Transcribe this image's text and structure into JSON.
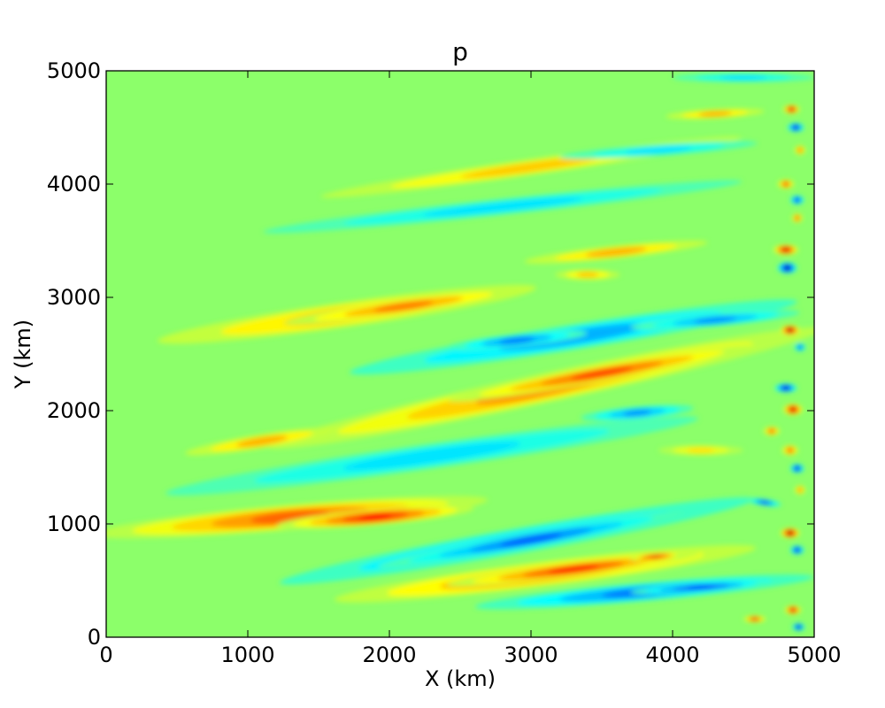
{
  "chart_data": {
    "type": "heatmap",
    "subtype": "filled-contour",
    "title": "p",
    "xlabel": "X (km)",
    "ylabel": "Y (km)",
    "xlim": [
      0,
      5000
    ],
    "ylim": [
      0,
      5000
    ],
    "xticks": [
      0,
      1000,
      2000,
      3000,
      4000,
      5000
    ],
    "yticks": [
      0,
      1000,
      2000,
      3000,
      4000,
      5000
    ],
    "colormap": "jet",
    "grid": false,
    "colorbar": false,
    "background_color": "#8cff6a",
    "features": [
      {
        "level": 0.55,
        "cx": 1300,
        "cy": 1060,
        "a": 1400,
        "b": 110,
        "angle": 5
      },
      {
        "level": 0.7,
        "cx": 1900,
        "cy": 1060,
        "a": 700,
        "b": 70,
        "angle": 5
      },
      {
        "level": 0.5,
        "cx": 3100,
        "cy": 560,
        "a": 1500,
        "b": 110,
        "angle": 7
      },
      {
        "level": 0.65,
        "cx": 3300,
        "cy": 600,
        "a": 900,
        "b": 65,
        "angle": 7
      },
      {
        "level": 0.8,
        "cx": 3880,
        "cy": 710,
        "a": 180,
        "b": 30,
        "angle": 5
      },
      {
        "level": 0.45,
        "cx": 3100,
        "cy": 2200,
        "a": 2000,
        "b": 130,
        "angle": 12
      },
      {
        "level": 0.6,
        "cx": 3500,
        "cy": 2330,
        "a": 1100,
        "b": 70,
        "angle": 10
      },
      {
        "level": 0.4,
        "cx": 1700,
        "cy": 2850,
        "a": 1350,
        "b": 110,
        "angle": 8
      },
      {
        "level": 0.5,
        "cx": 2100,
        "cy": 2920,
        "a": 850,
        "b": 65,
        "angle": 8
      },
      {
        "level": 0.4,
        "cx": 1100,
        "cy": 1730,
        "a": 550,
        "b": 60,
        "angle": 9
      },
      {
        "level": 0.35,
        "cx": 3000,
        "cy": 4150,
        "a": 1500,
        "b": 70,
        "angle": 8
      },
      {
        "level": 0.4,
        "cx": 3600,
        "cy": 3400,
        "a": 650,
        "b": 55,
        "angle": 6
      },
      {
        "level": 0.4,
        "cx": 4300,
        "cy": 4620,
        "a": 350,
        "b": 40,
        "angle": 3
      },
      {
        "level": 0.35,
        "cx": 3400,
        "cy": 3200,
        "a": 230,
        "b": 45,
        "angle": 0
      },
      {
        "level": 0.3,
        "cx": 4200,
        "cy": 1650,
        "a": 300,
        "b": 45,
        "angle": 0
      },
      {
        "level": -0.4,
        "cx": 2900,
        "cy": 850,
        "a": 1700,
        "b": 110,
        "angle": 10
      },
      {
        "level": -0.55,
        "cx": 3000,
        "cy": 860,
        "a": 1100,
        "b": 70,
        "angle": 10
      },
      {
        "level": -0.5,
        "cx": 3800,
        "cy": 400,
        "a": 1200,
        "b": 80,
        "angle": 5
      },
      {
        "level": -0.65,
        "cx": 4200,
        "cy": 440,
        "a": 500,
        "b": 40,
        "angle": 4
      },
      {
        "level": -0.4,
        "cx": 3300,
        "cy": 2650,
        "a": 1600,
        "b": 110,
        "angle": 9
      },
      {
        "level": -0.5,
        "cx": 2900,
        "cy": 2620,
        "a": 500,
        "b": 55,
        "angle": 6
      },
      {
        "level": -0.45,
        "cx": 4300,
        "cy": 2800,
        "a": 600,
        "b": 55,
        "angle": 5
      },
      {
        "level": -0.45,
        "cx": 3750,
        "cy": 1980,
        "a": 400,
        "b": 55,
        "angle": 5
      },
      {
        "level": -0.3,
        "cx": 2300,
        "cy": 1600,
        "a": 1900,
        "b": 110,
        "angle": 8
      },
      {
        "level": -0.3,
        "cx": 2800,
        "cy": 3800,
        "a": 1700,
        "b": 70,
        "angle": 6
      },
      {
        "level": -0.3,
        "cx": 3900,
        "cy": 4300,
        "a": 700,
        "b": 50,
        "angle": 4
      },
      {
        "level": -0.3,
        "cx": 4500,
        "cy": 4940,
        "a": 500,
        "b": 40,
        "angle": 0
      },
      {
        "level": 0.95,
        "cx": 4830,
        "cy": 920,
        "a": 70,
        "b": 45,
        "angle": 0
      },
      {
        "level": -0.95,
        "cx": 4810,
        "cy": 3260,
        "a": 70,
        "b": 50,
        "angle": 0
      },
      {
        "level": 0.95,
        "cx": 4830,
        "cy": 2710,
        "a": 70,
        "b": 45,
        "angle": 0
      },
      {
        "level": 0.85,
        "cx": 4850,
        "cy": 2010,
        "a": 70,
        "b": 50,
        "angle": 0
      },
      {
        "level": -0.85,
        "cx": 4800,
        "cy": 2200,
        "a": 80,
        "b": 40,
        "angle": 0
      },
      {
        "level": 0.85,
        "cx": 4800,
        "cy": 3420,
        "a": 90,
        "b": 45,
        "angle": 0
      },
      {
        "level": -0.8,
        "cx": 4880,
        "cy": 1490,
        "a": 50,
        "b": 40,
        "angle": 0
      },
      {
        "level": 0.8,
        "cx": 4840,
        "cy": 4660,
        "a": 60,
        "b": 40,
        "angle": 0
      },
      {
        "level": -0.8,
        "cx": 4870,
        "cy": 4500,
        "a": 60,
        "b": 40,
        "angle": 0
      },
      {
        "level": 0.8,
        "cx": 4850,
        "cy": 240,
        "a": 60,
        "b": 40,
        "angle": 0
      },
      {
        "level": -0.85,
        "cx": 4890,
        "cy": 90,
        "a": 45,
        "b": 35,
        "angle": 0
      },
      {
        "level": -0.8,
        "cx": 4880,
        "cy": 770,
        "a": 50,
        "b": 40,
        "angle": 0
      },
      {
        "level": 0.6,
        "cx": 4800,
        "cy": 4000,
        "a": 60,
        "b": 40,
        "angle": 0
      },
      {
        "level": -0.7,
        "cx": 4880,
        "cy": 3860,
        "a": 50,
        "b": 40,
        "angle": 0
      },
      {
        "level": 0.55,
        "cx": 4880,
        "cy": 3700,
        "a": 40,
        "b": 40,
        "angle": 0
      },
      {
        "level": 0.55,
        "cx": 4830,
        "cy": 1650,
        "a": 60,
        "b": 45,
        "angle": 0
      },
      {
        "level": 0.55,
        "cx": 4700,
        "cy": 1820,
        "a": 60,
        "b": 40,
        "angle": 0
      },
      {
        "level": 0.65,
        "cx": 4580,
        "cy": 160,
        "a": 80,
        "b": 30,
        "angle": 0
      },
      {
        "level": -0.6,
        "cx": 4650,
        "cy": 1190,
        "a": 120,
        "b": 30,
        "angle": -8
      },
      {
        "level": -0.6,
        "cx": 4900,
        "cy": 2560,
        "a": 40,
        "b": 35,
        "angle": 0
      },
      {
        "level": 0.5,
        "cx": 4900,
        "cy": 4300,
        "a": 40,
        "b": 40,
        "angle": 0
      },
      {
        "level": 0.45,
        "cx": 4900,
        "cy": 1300,
        "a": 40,
        "b": 40,
        "angle": 0
      }
    ]
  }
}
